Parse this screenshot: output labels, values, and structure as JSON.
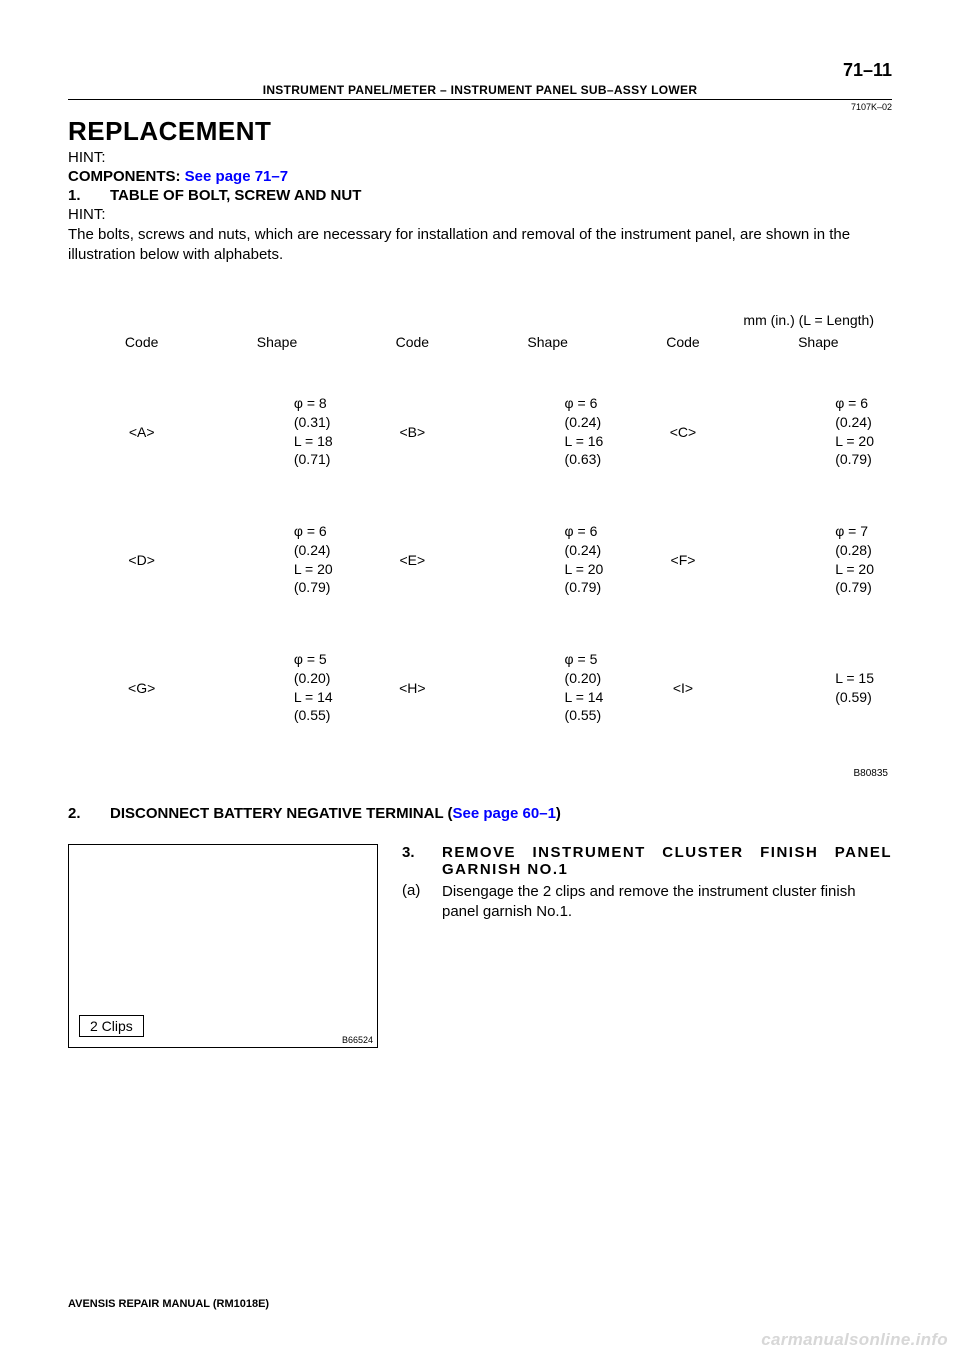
{
  "page_number": "71–11",
  "header_breadcrumb": "INSTRUMENT PANEL/METER    –    INSTRUMENT PANEL SUB–ASSY LOWER",
  "header_code": "7107K–02",
  "title": "REPLACEMENT",
  "hint_label": "HINT:",
  "components_label": "COMPONENTS: ",
  "components_link": "See page 71–7",
  "step1": {
    "num": "1.",
    "text": "TABLE OF BOLT, SCREW AND NUT"
  },
  "hint2": "HINT:",
  "body_para": "The bolts, screws and nuts, which are necessary for installation and removal of the instrument panel, are shown in the illustration below with alphabets.",
  "unit_note": "mm (in.) (L = Length)",
  "table": {
    "headers": [
      "Code",
      "Shape",
      "Code",
      "Shape",
      "Code",
      "Shape"
    ],
    "rows": [
      [
        {
          "code": "<A>",
          "shape": "φ = 8\n(0.31)\nL = 18\n(0.71)"
        },
        {
          "code": "<B>",
          "shape": "φ = 6\n(0.24)\nL = 16\n(0.63)"
        },
        {
          "code": "<C>",
          "shape": "φ = 6\n(0.24)\nL = 20\n(0.79)"
        }
      ],
      [
        {
          "code": "<D>",
          "shape": "φ = 6\n(0.24)\nL = 20\n(0.79)"
        },
        {
          "code": "<E>",
          "shape": "φ = 6\n(0.24)\nL = 20\n(0.79)"
        },
        {
          "code": "<F>",
          "shape": "φ = 7\n(0.28)\nL = 20\n(0.79)"
        }
      ],
      [
        {
          "code": "<G>",
          "shape": "φ = 5\n(0.20)\nL = 14\n(0.55)"
        },
        {
          "code": "<H>",
          "shape": "φ = 5\n(0.20)\nL = 14\n(0.55)"
        },
        {
          "code": "<I>",
          "shape": "L = 15\n(0.59)"
        }
      ]
    ]
  },
  "table_small_code": "B80835",
  "step2": {
    "num": "2.",
    "text_before": "DISCONNECT BATTERY NEGATIVE TERMINAL (",
    "link": "See page 60–1",
    "text_after": ")"
  },
  "step3": {
    "figure_clips": "2 Clips",
    "figure_code": "B66524",
    "num": "3.",
    "title": "REMOVE INSTRUMENT CLUSTER FINISH PANEL GARNISH NO.1",
    "sub_num": "(a)",
    "sub_text": "Disengage the 2 clips and remove the instrument cluster finish panel garnish No.1."
  },
  "footer": "AVENSIS REPAIR MANUAL   (RM1018E)",
  "watermark": "carmanualsonline.info"
}
